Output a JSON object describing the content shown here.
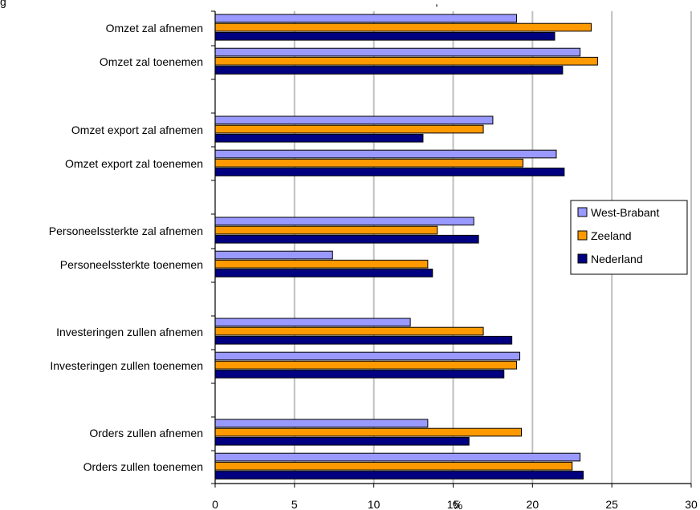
{
  "header_fragment": "g",
  "header_fragment_right": ",",
  "chart_data": {
    "type": "bar",
    "orientation": "horizontal",
    "categories": [
      "Omzet zal afnemen",
      "Omzet zal toenemen",
      "Omzet export zal afnemen",
      "Omzet export zal toenemen",
      "Personeelssterkte zal afnemen",
      "Personeelssterkte toenemen",
      "Investeringen zullen afnemen",
      "Investeringen zullen toenemen",
      "Orders zullen afnemen",
      "Orders zullen toenemen"
    ],
    "series": [
      {
        "name": "West-Brabant",
        "color": "#9999ff",
        "values": [
          19.0,
          23.0,
          17.5,
          21.5,
          16.3,
          7.4,
          12.3,
          19.2,
          13.4,
          23.0
        ]
      },
      {
        "name": "Zeeland",
        "color": "#ff9900",
        "values": [
          23.7,
          24.1,
          16.9,
          19.4,
          14.0,
          13.4,
          16.9,
          19.0,
          19.3,
          22.5
        ]
      },
      {
        "name": "Nederland",
        "color": "#000080",
        "values": [
          21.4,
          21.9,
          13.1,
          22.0,
          16.6,
          13.7,
          18.7,
          18.2,
          16.0,
          23.2
        ]
      }
    ],
    "xlim": [
      0,
      30
    ],
    "x_ticks": [
      "0",
      "5",
      "10",
      "15",
      "20",
      "25",
      "30"
    ],
    "xlabel": "%",
    "grid": "vertical",
    "legend": {
      "position": "right"
    }
  }
}
